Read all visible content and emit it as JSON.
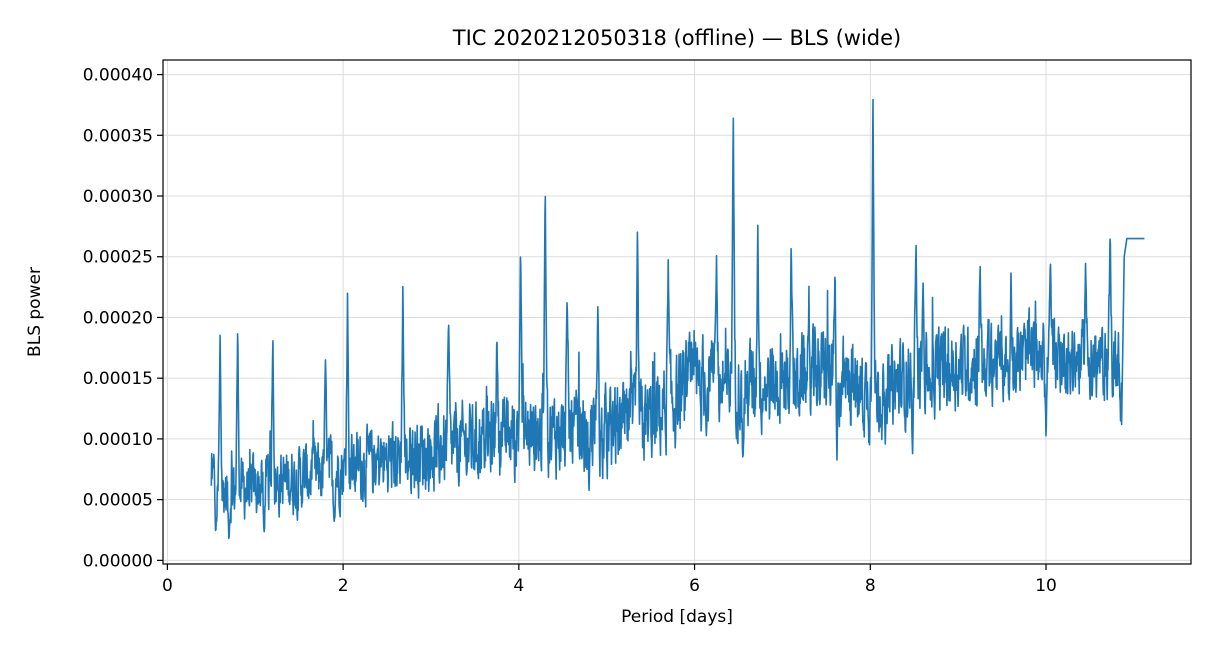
{
  "chart_data": {
    "type": "line",
    "title": "TIC 2020212050318 (offline) — BLS (wide)",
    "xlabel": "Period [days]",
    "ylabel": "BLS power",
    "xlim": [
      -0.05,
      11.65
    ],
    "ylim": [
      -3e-06,
      0.000412
    ],
    "xticks": [
      0,
      2,
      4,
      6,
      8,
      10
    ],
    "xtick_labels": [
      "0",
      "2",
      "4",
      "6",
      "8",
      "10"
    ],
    "yticks": [
      0,
      5e-05,
      0.0001,
      0.00015,
      0.0002,
      0.00025,
      0.0003,
      0.00035,
      0.0004
    ],
    "ytick_labels": [
      "0.00000",
      "0.00005",
      "0.00010",
      "0.00015",
      "0.00020",
      "0.00025",
      "0.00030",
      "0.00035",
      "0.00040"
    ],
    "grid": true,
    "series": [
      {
        "color": "#1f77b4",
        "x_range": [
          0.5,
          11.12
        ],
        "baseline_anchors": [
          [
            0.5,
            5.5e-05
          ],
          [
            1.0,
            6e-05
          ],
          [
            2.0,
            7.5e-05
          ],
          [
            3.0,
            9e-05
          ],
          [
            4.0,
            0.000105
          ],
          [
            5.0,
            0.000105
          ],
          [
            5.5,
            0.000115
          ],
          [
            6.0,
            0.000145
          ],
          [
            7.0,
            0.000145
          ],
          [
            7.5,
            0.000155
          ],
          [
            8.0,
            0.000135
          ],
          [
            8.5,
            0.00015
          ],
          [
            9.0,
            0.00016
          ],
          [
            10.0,
            0.00017
          ],
          [
            10.9,
            0.00016
          ]
        ],
        "noise_amplitude": [
          [
            0.5,
            3e-05
          ],
          [
            1.5,
            3.2e-05
          ],
          [
            3.0,
            3.8e-05
          ],
          [
            5.0,
            4.2e-05
          ],
          [
            6.0,
            4.5e-05
          ],
          [
            8.0,
            4.2e-05
          ],
          [
            10.9,
            3.5e-05
          ]
        ],
        "peaks": [
          {
            "x": 0.53,
            "y": 9.7e-05
          },
          {
            "x": 0.6,
            "y": 0.000188
          },
          {
            "x": 0.8,
            "y": 0.000196
          },
          {
            "x": 1.2,
            "y": 0.000191
          },
          {
            "x": 1.8,
            "y": 0.00017
          },
          {
            "x": 2.05,
            "y": 0.00022
          },
          {
            "x": 2.68,
            "y": 0.000229
          },
          {
            "x": 3.2,
            "y": 0.000202
          },
          {
            "x": 3.75,
            "y": 0.000188
          },
          {
            "x": 4.02,
            "y": 0.000266
          },
          {
            "x": 4.3,
            "y": 0.000317
          },
          {
            "x": 4.55,
            "y": 0.00022
          },
          {
            "x": 4.9,
            "y": 0.000215
          },
          {
            "x": 5.35,
            "y": 0.000276
          },
          {
            "x": 5.7,
            "y": 0.000248
          },
          {
            "x": 6.25,
            "y": 0.000252
          },
          {
            "x": 6.44,
            "y": 0.000378
          },
          {
            "x": 6.72,
            "y": 0.000276
          },
          {
            "x": 7.1,
            "y": 0.000265
          },
          {
            "x": 7.6,
            "y": 0.00025
          },
          {
            "x": 8.03,
            "y": 0.000396
          },
          {
            "x": 8.52,
            "y": 0.000265
          },
          {
            "x": 8.6,
            "y": 0.000232
          },
          {
            "x": 9.25,
            "y": 0.000243
          },
          {
            "x": 9.6,
            "y": 0.000248
          },
          {
            "x": 10.05,
            "y": 0.000248
          },
          {
            "x": 10.45,
            "y": 0.000247
          },
          {
            "x": 10.73,
            "y": 0.000276
          }
        ],
        "dips": [
          {
            "x": 0.55,
            "y": 2e-05
          },
          {
            "x": 0.7,
            "y": 1.7e-05
          },
          {
            "x": 1.1,
            "y": 2e-05
          },
          {
            "x": 1.9,
            "y": 3e-05
          },
          {
            "x": 4.8,
            "y": 5.5e-05
          },
          {
            "x": 6.55,
            "y": 7.8e-05
          },
          {
            "x": 7.62,
            "y": 8e-05
          },
          {
            "x": 8.17,
            "y": 9.5e-05
          },
          {
            "x": 8.48,
            "y": 8.5e-05
          },
          {
            "x": 9.58,
            "y": 0.00013
          },
          {
            "x": 10.0,
            "y": 0.0001
          },
          {
            "x": 10.85,
            "y": 0.00011
          }
        ],
        "tail": [
          [
            10.86,
            0.000112
          ],
          [
            10.89,
            0.00025
          ],
          [
            10.92,
            0.000265
          ],
          [
            11.12,
            0.000265
          ]
        ]
      }
    ]
  }
}
